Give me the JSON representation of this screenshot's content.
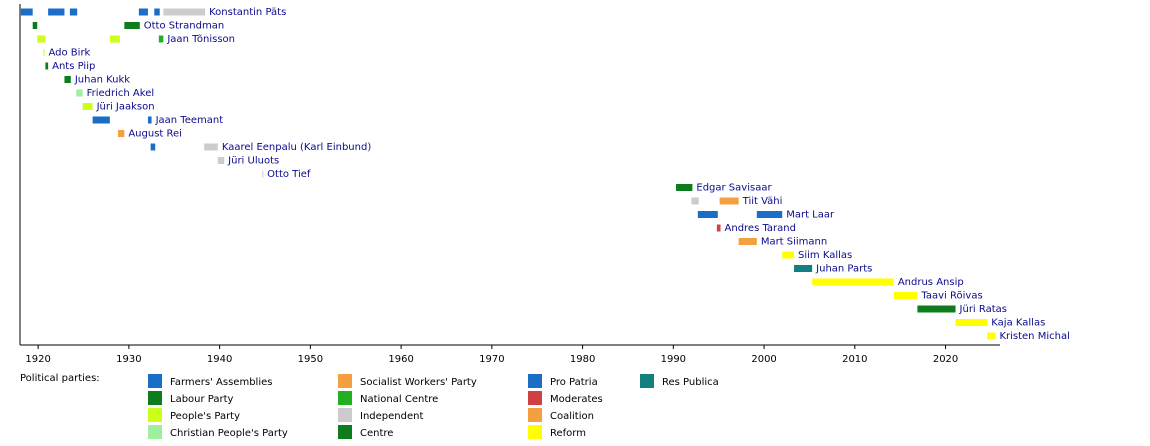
{
  "chart_data": {
    "type": "timeline",
    "xlim": [
      1918,
      2026
    ],
    "xticks": [
      1920,
      1930,
      1940,
      1950,
      1960,
      1970,
      1980,
      1990,
      2000,
      2010,
      2020
    ],
    "legend_title": "Political parties:",
    "series": [
      {
        "name": "Farmers' Assemblies",
        "color": "#1a6ec8"
      },
      {
        "name": "Labour Party",
        "color": "#0c7c1c"
      },
      {
        "name": "People's Party",
        "color": "#ccff1a"
      },
      {
        "name": "Christian People's Party",
        "color": "#9ef09e"
      },
      {
        "name": "Socialist Workers' Party",
        "color": "#f5a040"
      },
      {
        "name": "National Centre",
        "color": "#20b020"
      },
      {
        "name": "Independent",
        "color": "#cccccc"
      },
      {
        "name": "Centre",
        "color": "#0c7c1c"
      },
      {
        "name": "Pro Patria",
        "color": "#1a6ec8"
      },
      {
        "name": "Moderates",
        "color": "#d04040"
      },
      {
        "name": "Coalition",
        "color": "#f5a040"
      },
      {
        "name": "Reform",
        "color": "#ffff00"
      },
      {
        "name": "Res Publica",
        "color": "#138080"
      }
    ],
    "rows": [
      {
        "name": "Konstantin Päts",
        "terms": [
          {
            "party": 0,
            "start": 1918.1,
            "end": 1919.4
          },
          {
            "party": 0,
            "start": 1921.1,
            "end": 1922.9
          },
          {
            "party": 0,
            "start": 1923.5,
            "end": 1924.3
          },
          {
            "party": 0,
            "start": 1931.1,
            "end": 1932.1
          },
          {
            "party": 0,
            "start": 1932.8,
            "end": 1933.4
          },
          {
            "party": 6,
            "start": 1933.8,
            "end": 1938.4
          }
        ]
      },
      {
        "name": "Otto Strandman",
        "terms": [
          {
            "party": 1,
            "start": 1919.4,
            "end": 1919.9
          },
          {
            "party": 1,
            "start": 1929.5,
            "end": 1931.2
          }
        ]
      },
      {
        "name": "Jaan Tõnisson",
        "terms": [
          {
            "party": 2,
            "start": 1919.9,
            "end": 1920.8
          },
          {
            "party": 2,
            "start": 1927.9,
            "end": 1929.0
          },
          {
            "party": 5,
            "start": 1933.3,
            "end": 1933.8
          }
        ]
      },
      {
        "name": "Ado Birk",
        "terms": [
          {
            "party": 2,
            "start": 1920.6,
            "end": 1920.7
          }
        ]
      },
      {
        "name": "Ants Piip",
        "terms": [
          {
            "party": 1,
            "start": 1920.8,
            "end": 1921.1
          }
        ]
      },
      {
        "name": "Juhan Kukk",
        "terms": [
          {
            "party": 1,
            "start": 1922.9,
            "end": 1923.6
          }
        ]
      },
      {
        "name": "Friedrich Akel",
        "terms": [
          {
            "party": 3,
            "start": 1924.2,
            "end": 1924.9
          }
        ]
      },
      {
        "name": "Jüri Jaakson",
        "terms": [
          {
            "party": 2,
            "start": 1924.9,
            "end": 1926.0
          }
        ]
      },
      {
        "name": "Jaan Teemant",
        "terms": [
          {
            "party": 0,
            "start": 1926.0,
            "end": 1927.9
          },
          {
            "party": 0,
            "start": 1932.1,
            "end": 1932.5
          }
        ]
      },
      {
        "name": "August Rei",
        "terms": [
          {
            "party": 4,
            "start": 1928.8,
            "end": 1929.5
          }
        ]
      },
      {
        "name": "Kaarel Eenpalu (Karl Einbund)",
        "terms": [
          {
            "party": 0,
            "start": 1932.4,
            "end": 1932.9
          },
          {
            "party": 6,
            "start": 1938.3,
            "end": 1939.8
          }
        ]
      },
      {
        "name": "Jüri Uluots",
        "terms": [
          {
            "party": 6,
            "start": 1939.8,
            "end": 1940.5
          }
        ]
      },
      {
        "name": "Otto Tief",
        "terms": [
          {
            "party": 6,
            "start": 1944.7,
            "end": 1944.8
          }
        ]
      },
      {
        "name": "Edgar Savisaar",
        "terms": [
          {
            "party": 7,
            "start": 1990.3,
            "end": 1992.1
          }
        ]
      },
      {
        "name": "Tiit Vähi",
        "terms": [
          {
            "party": 6,
            "start": 1992.0,
            "end": 1992.8
          },
          {
            "party": 10,
            "start": 1995.1,
            "end": 1997.2
          }
        ]
      },
      {
        "name": "Mart Laar",
        "terms": [
          {
            "party": 8,
            "start": 1992.7,
            "end": 1994.9
          },
          {
            "party": 8,
            "start": 1999.2,
            "end": 2002.0
          }
        ]
      },
      {
        "name": "Andres Tarand",
        "terms": [
          {
            "party": 9,
            "start": 1994.8,
            "end": 1995.2
          }
        ]
      },
      {
        "name": "Mart Siimann",
        "terms": [
          {
            "party": 10,
            "start": 1997.2,
            "end": 1999.2
          }
        ]
      },
      {
        "name": "Siim Kallas",
        "terms": [
          {
            "party": 11,
            "start": 2002.0,
            "end": 2003.3
          }
        ]
      },
      {
        "name": "Juhan Parts",
        "terms": [
          {
            "party": 12,
            "start": 2003.3,
            "end": 2005.3
          }
        ]
      },
      {
        "name": "Andrus Ansip",
        "terms": [
          {
            "party": 11,
            "start": 2005.3,
            "end": 2014.3
          }
        ]
      },
      {
        "name": "Taavi Rõivas",
        "terms": [
          {
            "party": 11,
            "start": 2014.3,
            "end": 2016.9
          }
        ]
      },
      {
        "name": "Jüri Ratas",
        "terms": [
          {
            "party": 7,
            "start": 2016.9,
            "end": 2021.1
          }
        ]
      },
      {
        "name": "Kaja Kallas",
        "terms": [
          {
            "party": 11,
            "start": 2021.1,
            "end": 2024.6
          }
        ]
      },
      {
        "name": "Kristen Michal",
        "terms": [
          {
            "party": 11,
            "start": 2024.6,
            "end": 2025.5
          }
        ]
      }
    ]
  }
}
